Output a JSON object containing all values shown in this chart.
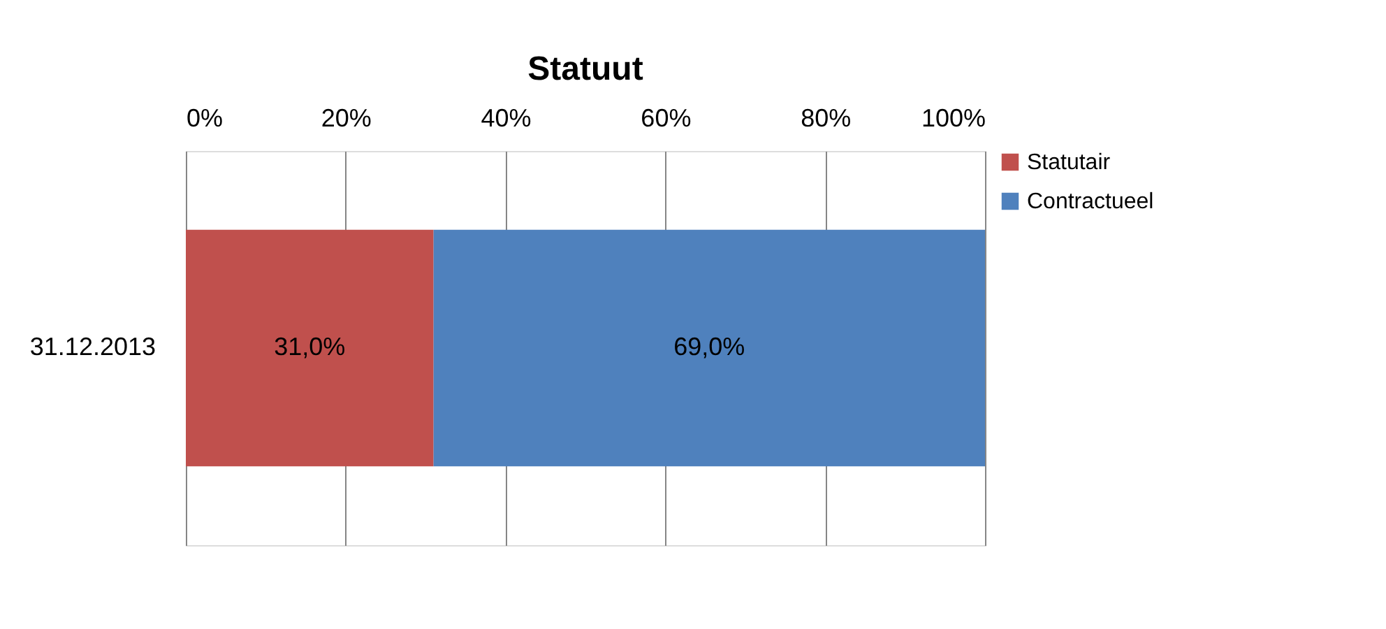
{
  "chart_data": {
    "type": "bar",
    "title": "Statuut",
    "orientation": "horizontal",
    "stacked": true,
    "categories": [
      "31.12.2013"
    ],
    "series": [
      {
        "name": "Statutair",
        "color": "#c0504d",
        "values": [
          31.0
        ],
        "value_labels": [
          "31,0%"
        ]
      },
      {
        "name": "Contractueel",
        "color": "#4f81bd",
        "values": [
          69.0
        ],
        "value_labels": [
          "69,0%"
        ]
      }
    ],
    "xlim": [
      0,
      100
    ],
    "xticks": [
      {
        "value": 0,
        "label": "0%"
      },
      {
        "value": 20,
        "label": "20%"
      },
      {
        "value": 40,
        "label": "40%"
      },
      {
        "value": 60,
        "label": "60%"
      },
      {
        "value": 80,
        "label": "80%"
      },
      {
        "value": 100,
        "label": "100%"
      }
    ],
    "grid": "x",
    "legend": "right"
  }
}
